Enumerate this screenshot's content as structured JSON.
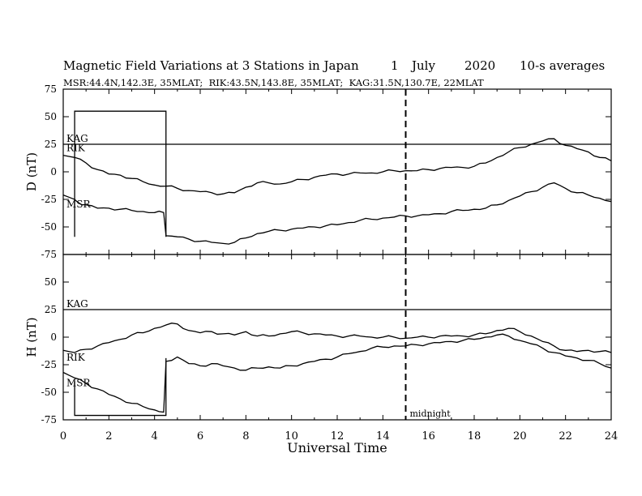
{
  "title": {
    "text": "Magnetic Field Variations at 3 Stations in Japan",
    "day": "1",
    "month": "July",
    "year": "2020",
    "averaging": "10-s averages"
  },
  "subtitle": "MSR:44.4N,142.3E, 35MLAT;  RIK:43.5N,143.8E, 35MLAT;  KAG:31.5N,130.7E, 22MLAT",
  "chart_data": [
    {
      "type": "line",
      "panel": "D",
      "ylabel": "D (nT)",
      "xlabel": "",
      "xlim": [
        0,
        24
      ],
      "ylim": [
        -75,
        75
      ],
      "yticks": [
        -75,
        -50,
        -25,
        0,
        25,
        50,
        75
      ],
      "reference_line": {
        "label": "KAG",
        "y": 25
      },
      "calibration_box": {
        "x": [
          0.5,
          4.5
        ],
        "y": [
          -59,
          55
        ]
      },
      "series": [
        {
          "name": "RIK",
          "x": [
            0,
            0.5,
            1,
            1.5,
            2,
            2.5,
            3,
            3.5,
            4,
            4.5,
            5,
            5.5,
            6,
            6.5,
            7,
            7.5,
            8,
            8.5,
            9,
            9.5,
            10,
            10.5,
            11,
            11.5,
            12,
            12.5,
            13,
            13.5,
            14,
            14.5,
            15,
            15.5,
            16,
            16.5,
            17,
            17.5,
            18,
            18.5,
            19,
            19.5,
            20,
            20.5,
            21,
            21.5,
            22,
            22.5,
            23,
            23.5,
            24
          ],
          "y": [
            15,
            13,
            8,
            2,
            -2,
            -3,
            -6,
            -9,
            -12,
            -13,
            -15,
            -17,
            -18,
            -19,
            -20,
            -19,
            -14,
            -10,
            -10,
            -11,
            -9,
            -7,
            -5,
            -3,
            -2,
            -2,
            -1,
            -1,
            0,
            1,
            1,
            1,
            2,
            3,
            4,
            4,
            5,
            8,
            13,
            18,
            22,
            25,
            28,
            30,
            24,
            21,
            18,
            13,
            10
          ]
        },
        {
          "name": "MSR",
          "x": [
            0,
            0.5,
            0.6,
            1,
            1.5,
            2,
            2.5,
            3,
            3.5,
            4,
            4.4,
            4.5,
            5,
            5.5,
            6,
            6.5,
            7,
            7.5,
            8,
            8.5,
            9,
            9.5,
            10,
            10.5,
            11,
            11.5,
            12,
            12.5,
            13,
            13.5,
            14,
            14.5,
            15,
            15.5,
            16,
            16.5,
            17,
            17.5,
            18,
            18.5,
            19,
            19.5,
            20,
            20.5,
            21,
            21.5,
            22,
            22.5,
            23,
            23.5,
            24
          ],
          "y": [
            -21,
            -25,
            -27,
            -30,
            -33,
            -33,
            -34,
            -35,
            -36,
            -37,
            -37,
            -58,
            -59,
            -61,
            -63,
            -64,
            -65,
            -64,
            -60,
            -56,
            -54,
            -53,
            -52,
            -51,
            -50,
            -49,
            -48,
            -46,
            -44,
            -43,
            -42,
            -41,
            -40,
            -40,
            -39,
            -38,
            -36,
            -35,
            -34,
            -33,
            -30,
            -26,
            -22,
            -18,
            -14,
            -10,
            -15,
            -19,
            -21,
            -24,
            -27
          ]
        }
      ]
    },
    {
      "type": "line",
      "panel": "H",
      "ylabel": "H (nT)",
      "xlabel": "Universal Time",
      "xlim": [
        0,
        24
      ],
      "ylim": [
        -75,
        75
      ],
      "yticks": [
        -75,
        -50,
        -25,
        0,
        25,
        50
      ],
      "xticks": [
        0,
        2,
        4,
        6,
        8,
        10,
        12,
        14,
        16,
        18,
        20,
        22,
        24
      ],
      "reference_line": {
        "label": "KAG",
        "y": 25
      },
      "calibration_box": {
        "x": [
          0.5,
          4.5
        ],
        "y": [
          -71,
          -19
        ]
      },
      "annotations": [
        {
          "text": "midnight",
          "x": 15
        }
      ],
      "series": [
        {
          "name": "RIK",
          "x": [
            0,
            0.5,
            1,
            1.5,
            2,
            2.5,
            3,
            3.5,
            4,
            4.5,
            5,
            5.5,
            6,
            6.5,
            7,
            7.5,
            8,
            8.5,
            9,
            9.5,
            10,
            10.5,
            11,
            11.5,
            12,
            12.5,
            13,
            13.5,
            14,
            14.5,
            15,
            15.5,
            16,
            16.5,
            17,
            17.5,
            18,
            18.5,
            19,
            19.5,
            20,
            20.5,
            21,
            21.5,
            22,
            22.5,
            23,
            23.5,
            24
          ],
          "y": [
            -12,
            -14,
            -11,
            -8,
            -5,
            -2,
            2,
            4,
            8,
            11,
            12,
            6,
            4,
            5,
            3,
            2,
            5,
            1,
            1,
            3,
            5,
            4,
            3,
            2,
            1,
            1,
            1,
            0,
            0,
            0,
            -1,
            0,
            0,
            1,
            1,
            1,
            2,
            3,
            6,
            8,
            5,
            1,
            -4,
            -8,
            -12,
            -13,
            -12,
            -13,
            -14
          ]
        },
        {
          "name": "MSR",
          "x": [
            0,
            0.5,
            1,
            1.5,
            2,
            2.5,
            3,
            3.5,
            4,
            4.4,
            4.5,
            5,
            5.5,
            6,
            6.5,
            7,
            7.5,
            8,
            8.5,
            9,
            9.5,
            10,
            10.5,
            11,
            11.5,
            12,
            12.5,
            13,
            13.5,
            14,
            14.5,
            15,
            15.5,
            16,
            16.5,
            17,
            17.5,
            18,
            18.5,
            19,
            19.5,
            20,
            20.5,
            21,
            21.5,
            22,
            22.5,
            23,
            23.5,
            24
          ],
          "y": [
            -32,
            -37,
            -42,
            -47,
            -52,
            -56,
            -60,
            -63,
            -66,
            -68,
            -22,
            -18,
            -24,
            -26,
            -24,
            -26,
            -28,
            -30,
            -28,
            -27,
            -28,
            -26,
            -24,
            -22,
            -20,
            -18,
            -15,
            -13,
            -10,
            -9,
            -8,
            -8,
            -7,
            -6,
            -5,
            -4,
            -3,
            -2,
            0,
            2,
            1,
            -3,
            -6,
            -10,
            -14,
            -17,
            -19,
            -21,
            -24,
            -28
          ]
        }
      ]
    }
  ]
}
